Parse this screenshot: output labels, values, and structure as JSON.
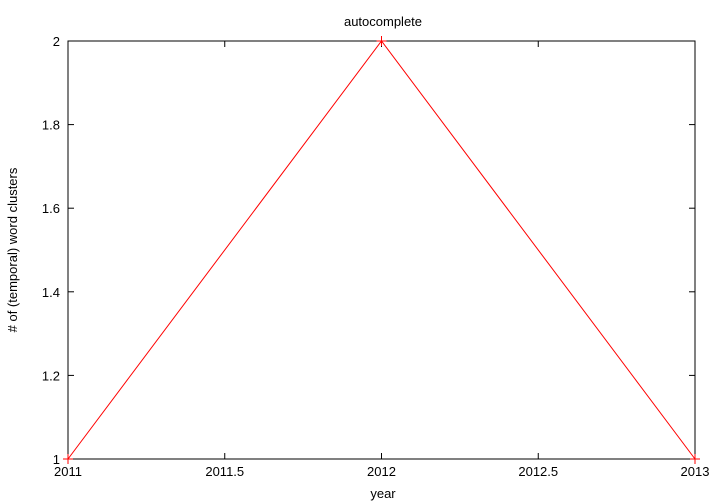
{
  "chart_data": {
    "type": "line",
    "title": "autocomplete",
    "xlabel": "year",
    "ylabel": "# of (temporal) word clusters",
    "xlim": [
      2011,
      2013
    ],
    "ylim": [
      1,
      2
    ],
    "x_ticks": [
      2011,
      2011.5,
      2012,
      2012.5,
      2013
    ],
    "x_tick_labels": [
      "2011",
      "2011.5",
      "2012",
      "2012.5",
      "2013"
    ],
    "y_ticks": [
      1,
      1.2,
      1.4,
      1.6,
      1.8,
      2
    ],
    "y_tick_labels": [
      "1",
      "1.2",
      "1.4",
      "1.6",
      "1.8",
      "2"
    ],
    "grid": false,
    "legend": "none",
    "series": [
      {
        "color": "#ff0000",
        "marker": "plus",
        "points": [
          {
            "x": 2011,
            "y": 1
          },
          {
            "x": 2012,
            "y": 2
          },
          {
            "x": 2013,
            "y": 1
          }
        ]
      }
    ]
  }
}
